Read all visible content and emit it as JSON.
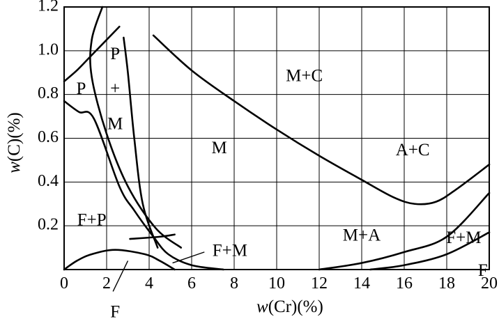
{
  "chart_data": {
    "type": "line",
    "title": "",
    "xlabel": "w(Cr)(%)",
    "ylabel": "w(C)(%)",
    "xlim": [
      0,
      20
    ],
    "ylim": [
      0,
      1.2
    ],
    "x_ticks": [
      "0",
      "2",
      "4",
      "6",
      "8",
      "10",
      "12",
      "14",
      "16",
      "18",
      "20"
    ],
    "y_ticks": [
      "0.2",
      "0.4",
      "0.6",
      "0.8",
      "1.0",
      "1.2"
    ],
    "grid": true,
    "series": [
      {
        "x": [
          0,
          0.7,
          1.4,
          2.6,
          3.3,
          4.2,
          4.9,
          6.0,
          7.5
        ],
        "y": [
          0.77,
          0.72,
          0.69,
          0.38,
          0.27,
          0.15,
          0.07,
          0.02,
          0.0
        ]
      },
      {
        "x": [
          0,
          0.6,
          1.3,
          2.4,
          3.8,
          4.5,
          5.2
        ],
        "y": [
          0.0,
          0.04,
          0.07,
          0.09,
          0.07,
          0.04,
          0.0
        ]
      },
      {
        "x": [
          0,
          0.6,
          1.3,
          2.6
        ],
        "y": [
          0.86,
          0.91,
          0.98,
          1.11
        ]
      },
      {
        "x": [
          1.8,
          1.3,
          1.3,
          2.0,
          3.0,
          4.3,
          5.5
        ],
        "y": [
          1.2,
          1.05,
          0.88,
          0.62,
          0.38,
          0.19,
          0.1
        ]
      },
      {
        "x": [
          2.8,
          3.0,
          3.3,
          3.7,
          4.4
        ],
        "y": [
          1.06,
          0.9,
          0.6,
          0.3,
          0.1
        ]
      },
      {
        "x": [
          3.1,
          4.5,
          5.2
        ],
        "y": [
          0.14,
          0.15,
          0.16
        ]
      },
      {
        "x": [
          4.2,
          6,
          8,
          10,
          12,
          14,
          15.5,
          16.5,
          17.5,
          18.5,
          20
        ],
        "y": [
          1.07,
          0.91,
          0.77,
          0.64,
          0.52,
          0.41,
          0.33,
          0.3,
          0.31,
          0.37,
          0.48
        ]
      },
      {
        "x": [
          12,
          14,
          16,
          18,
          20
        ],
        "y": [
          0.0,
          0.03,
          0.08,
          0.15,
          0.35
        ]
      },
      {
        "x": [
          14.4,
          16,
          18,
          20
        ],
        "y": [
          0.0,
          0.02,
          0.07,
          0.17
        ]
      }
    ],
    "annotations": [
      {
        "text": "P",
        "x": 0.8,
        "y": 0.82
      },
      {
        "text": "P",
        "x": 2.4,
        "y": 0.98
      },
      {
        "text": "+",
        "x": 2.4,
        "y": 0.82
      },
      {
        "text": "M",
        "x": 2.4,
        "y": 0.66
      },
      {
        "text": "M+C",
        "x": 11.3,
        "y": 0.88
      },
      {
        "text": "M",
        "x": 7.3,
        "y": 0.55
      },
      {
        "text": "A+C",
        "x": 16.4,
        "y": 0.54
      },
      {
        "text": "F+P",
        "x": 1.3,
        "y": 0.22
      },
      {
        "text": "M+A",
        "x": 14.0,
        "y": 0.15
      },
      {
        "text": "F+M",
        "x": 7.8,
        "y": 0.08
      },
      {
        "text": "F+M",
        "x": 18.8,
        "y": 0.14
      },
      {
        "text": "F",
        "x": 19.7,
        "y": -0.01
      },
      {
        "text": "F",
        "x": 2.4,
        "y": -0.2
      }
    ]
  }
}
